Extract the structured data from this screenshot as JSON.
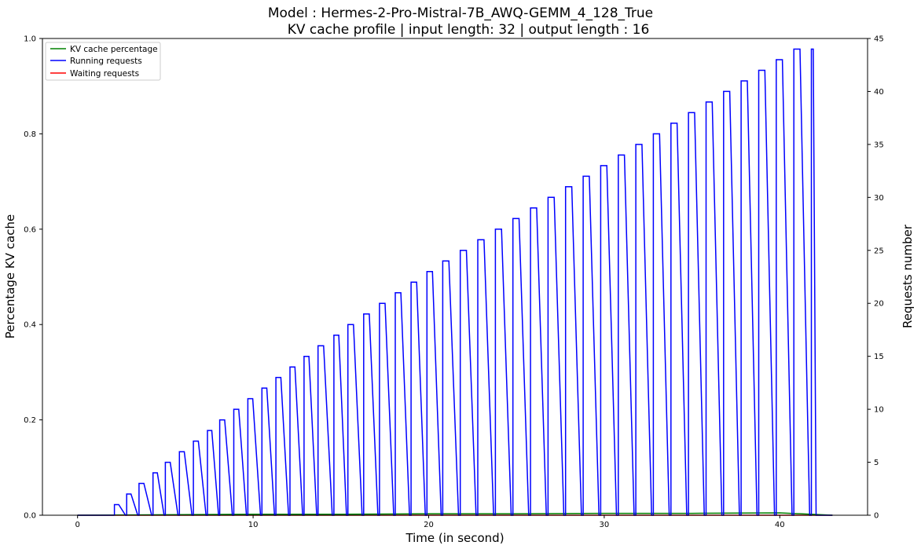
{
  "chart_data": {
    "type": "line",
    "title_line1": "Model : Hermes-2-Pro-Mistral-7B_AWQ-GEMM_4_128_True",
    "title_line2": "KV cache profile | input length: 32 | output length : 16",
    "xlabel": "Time (in second)",
    "ylabel_left": "Percentage KV cache",
    "ylabel_right": "Requests number",
    "xlim": [
      -2,
      45
    ],
    "ylim_left": [
      0,
      1.0
    ],
    "ylim_right": [
      0,
      45
    ],
    "x_ticks": [
      0,
      10,
      20,
      30,
      40
    ],
    "x_tick_labels": [
      "0",
      "10",
      "20",
      "30",
      "40"
    ],
    "y_left_ticks": [
      0,
      0.2,
      0.4,
      0.6,
      0.8,
      1.0
    ],
    "y_left_tick_labels": [
      "0.0",
      "0.2",
      "0.4",
      "0.6",
      "0.8",
      "1.0"
    ],
    "y_right_ticks": [
      0,
      5,
      10,
      15,
      20,
      25,
      30,
      35,
      40,
      45
    ],
    "y_right_tick_labels": [
      "0",
      "5",
      "10",
      "15",
      "20",
      "25",
      "30",
      "35",
      "40",
      "45"
    ],
    "legend": {
      "placement": "top-left",
      "entries": [
        {
          "label": "KV cache percentage",
          "color": "#008000"
        },
        {
          "label": "Running requests",
          "color": "#0000ff"
        },
        {
          "label": "Waiting requests",
          "color": "#ff0000"
        }
      ]
    },
    "series": [
      {
        "name": "Running requests",
        "axis": "right",
        "color": "#0000ff",
        "description": "Stepped ramps: at each start time the count jumps to value, then decays to 0 by end time",
        "x": [
          0,
          2.1,
          2.8,
          3.5,
          4.3,
          5.0,
          5.8,
          6.6,
          7.4,
          8.1,
          8.9,
          9.7,
          10.5,
          11.3,
          12.1,
          12.9,
          13.7,
          14.6,
          15.4,
          16.3,
          17.2,
          18.1,
          19.0,
          19.9,
          20.8,
          21.8,
          22.8,
          23.8,
          24.8,
          25.8,
          26.8,
          27.8,
          28.8,
          29.8,
          30.8,
          31.8,
          32.8,
          33.8,
          34.8,
          35.8,
          36.8,
          37.8,
          38.8,
          39.8,
          40.8,
          41.8
        ],
        "values": [
          0,
          1,
          2,
          3,
          4,
          5,
          6,
          7,
          8,
          9,
          10,
          11,
          12,
          13,
          14,
          15,
          16,
          17,
          18,
          19,
          20,
          21,
          22,
          23,
          24,
          25,
          26,
          27,
          28,
          29,
          30,
          31,
          32,
          33,
          34,
          35,
          36,
          37,
          38,
          39,
          40,
          41,
          42,
          43,
          44,
          44
        ]
      },
      {
        "name": "KV cache percentage",
        "axis": "left",
        "color": "#008000",
        "x": [
          0,
          5,
          10,
          15,
          20,
          25,
          30,
          35,
          40,
          43
        ],
        "values": [
          0,
          0.001,
          0.002,
          0.002,
          0.003,
          0.003,
          0.004,
          0.004,
          0.005,
          0
        ]
      },
      {
        "name": "Waiting requests",
        "axis": "right",
        "color": "#ff0000",
        "x": [
          0,
          43
        ],
        "values": [
          0,
          0
        ]
      }
    ]
  }
}
